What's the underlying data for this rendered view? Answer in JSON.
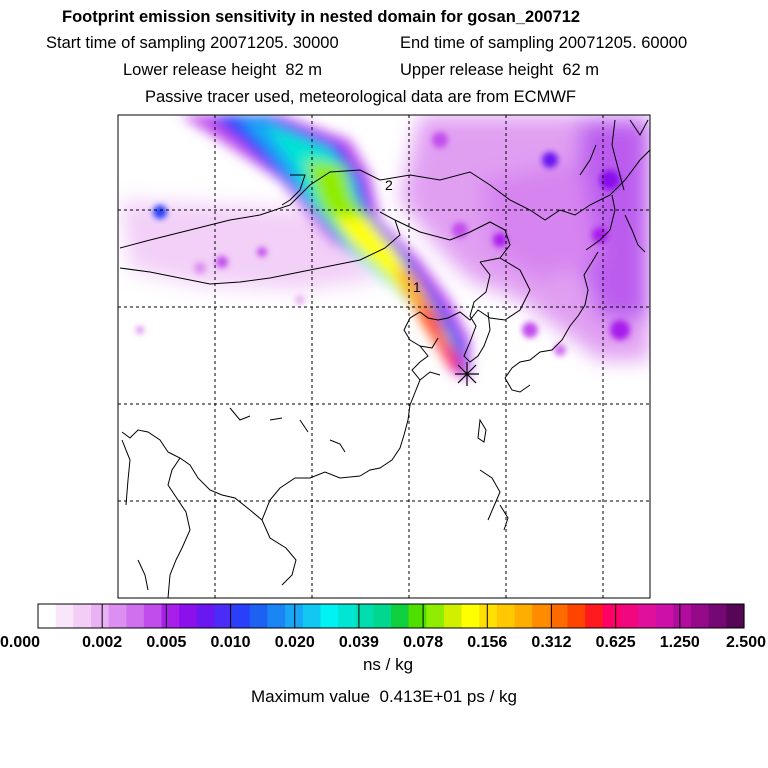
{
  "header": {
    "title": "Footprint emission sensitivity in nested domain for gosan_200712",
    "start_label": "Start time of sampling",
    "start_value": "20071205. 30000",
    "end_label": "End time of sampling",
    "end_value": "20071205. 60000",
    "lower_label": "Lower release height",
    "lower_value": "82 m",
    "upper_label": "Upper release height",
    "upper_value": "62 m",
    "tracer_note": "Passive tracer used, meteorological data are from ECMWF"
  },
  "map": {
    "markers": [
      {
        "label": "1"
      },
      {
        "label": "2"
      }
    ],
    "release_symbol": "asterisk-icon"
  },
  "legend": {
    "tick_labels": [
      "0.000",
      "0.002",
      "0.005",
      "0.010",
      "0.020",
      "0.039",
      "0.078",
      "0.156",
      "0.312",
      "0.625",
      "1.250",
      "2.500"
    ],
    "unit": "ns / kg",
    "colors": [
      "#ffffff",
      "#fae6fb",
      "#f3cdf6",
      "#e9b2f2",
      "#dc8ff0",
      "#d070ee",
      "#c24ded",
      "#a81fec",
      "#8a10ec",
      "#6a18f2",
      "#4a2cf6",
      "#2a3ffa",
      "#1e60f2",
      "#1a86f4",
      "#19a6f6",
      "#12c8f2",
      "#00f2f2",
      "#00e6d2",
      "#00deb0",
      "#00d890",
      "#10d040",
      "#50e000",
      "#90ec00",
      "#d0f000",
      "#ffff00",
      "#ffe000",
      "#ffc800",
      "#ffae00",
      "#ff8c00",
      "#ff6a00",
      "#ff4400",
      "#ff1a20",
      "#ff0066",
      "#f2087e",
      "#e0109a",
      "#cc10a8",
      "#b00c9e",
      "#940a88",
      "#760873",
      "#550655"
    ]
  },
  "footer": {
    "max_label": "Maximum value",
    "max_value": "0.413E+01 ps / kg"
  }
}
